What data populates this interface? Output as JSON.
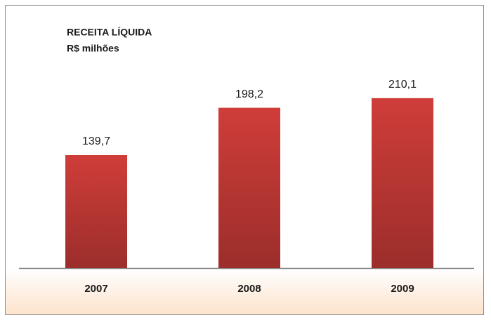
{
  "chart_data": {
    "type": "bar",
    "title": "RECEITA LÍQUIDA",
    "subtitle": "R$ milhões",
    "categories": [
      "2007",
      "2008",
      "2009"
    ],
    "values": [
      139.7,
      198.2,
      210.1
    ],
    "value_labels": [
      "139,7",
      "198,2",
      "210,1"
    ],
    "color": "#cf3d39"
  }
}
